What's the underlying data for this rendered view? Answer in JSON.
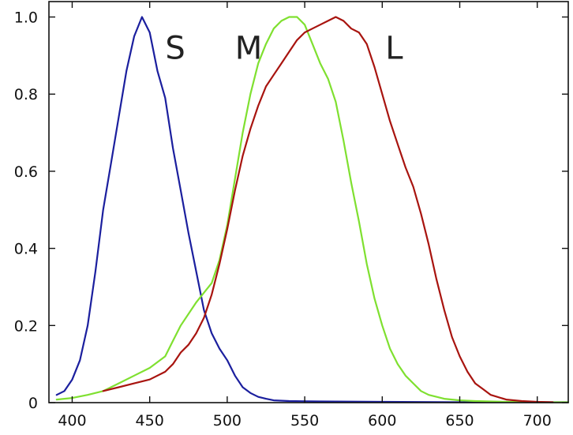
{
  "chart_data": {
    "type": "line",
    "title": "",
    "xlabel": "",
    "ylabel": "",
    "xlim": [
      385,
      720
    ],
    "ylim": [
      0,
      1.04
    ],
    "grid": false,
    "legend": "none",
    "x_ticks": [
      400,
      450,
      500,
      550,
      600,
      650,
      700
    ],
    "y_ticks": [
      0,
      0.2,
      0.4,
      0.6,
      0.8,
      1.0
    ],
    "x_tick_labels": [
      "400",
      "450",
      "500",
      "550",
      "600",
      "650",
      "700"
    ],
    "y_tick_labels": [
      "0",
      "0.2",
      "0.4",
      "0.6",
      "0.8",
      "1.0"
    ],
    "series": [
      {
        "name": "S",
        "label_position": [
          460,
          0.92
        ],
        "color": "#1b1f9e",
        "points": [
          [
            390,
            0.02
          ],
          [
            395,
            0.03
          ],
          [
            400,
            0.06
          ],
          [
            405,
            0.11
          ],
          [
            410,
            0.2
          ],
          [
            415,
            0.34
          ],
          [
            420,
            0.5
          ],
          [
            425,
            0.62
          ],
          [
            430,
            0.74
          ],
          [
            435,
            0.86
          ],
          [
            440,
            0.95
          ],
          [
            445,
            1.0
          ],
          [
            450,
            0.96
          ],
          [
            455,
            0.86
          ],
          [
            460,
            0.79
          ],
          [
            465,
            0.66
          ],
          [
            470,
            0.55
          ],
          [
            475,
            0.44
          ],
          [
            480,
            0.34
          ],
          [
            485,
            0.24
          ],
          [
            490,
            0.18
          ],
          [
            495,
            0.14
          ],
          [
            500,
            0.11
          ],
          [
            505,
            0.07
          ],
          [
            510,
            0.04
          ],
          [
            515,
            0.025
          ],
          [
            520,
            0.015
          ],
          [
            525,
            0.01
          ],
          [
            530,
            0.006
          ],
          [
            540,
            0.004
          ],
          [
            560,
            0.003
          ],
          [
            600,
            0.002
          ],
          [
            650,
            0.001
          ],
          [
            700,
            0.001
          ],
          [
            720,
            0.001
          ]
        ]
      },
      {
        "name": "M",
        "label_position": [
          505,
          0.92
        ],
        "color": "#7fe030",
        "points": [
          [
            390,
            0.008
          ],
          [
            400,
            0.012
          ],
          [
            410,
            0.02
          ],
          [
            420,
            0.03
          ],
          [
            430,
            0.05
          ],
          [
            440,
            0.07
          ],
          [
            450,
            0.09
          ],
          [
            460,
            0.12
          ],
          [
            465,
            0.16
          ],
          [
            470,
            0.2
          ],
          [
            480,
            0.26
          ],
          [
            490,
            0.31
          ],
          [
            495,
            0.37
          ],
          [
            500,
            0.46
          ],
          [
            505,
            0.58
          ],
          [
            510,
            0.7
          ],
          [
            515,
            0.8
          ],
          [
            520,
            0.88
          ],
          [
            525,
            0.93
          ],
          [
            530,
            0.97
          ],
          [
            535,
            0.99
          ],
          [
            540,
            1.0
          ],
          [
            545,
            1.0
          ],
          [
            550,
            0.98
          ],
          [
            555,
            0.93
          ],
          [
            560,
            0.88
          ],
          [
            565,
            0.84
          ],
          [
            570,
            0.78
          ],
          [
            575,
            0.68
          ],
          [
            580,
            0.57
          ],
          [
            585,
            0.47
          ],
          [
            590,
            0.36
          ],
          [
            595,
            0.27
          ],
          [
            600,
            0.2
          ],
          [
            605,
            0.14
          ],
          [
            610,
            0.1
          ],
          [
            615,
            0.07
          ],
          [
            620,
            0.05
          ],
          [
            625,
            0.03
          ],
          [
            630,
            0.02
          ],
          [
            640,
            0.01
          ],
          [
            650,
            0.006
          ],
          [
            660,
            0.004
          ],
          [
            680,
            0.002
          ],
          [
            700,
            0.001
          ],
          [
            720,
            0.001
          ]
        ]
      },
      {
        "name": "L",
        "label_position": [
          602,
          0.92
        ],
        "color": "#a8140f",
        "points": [
          [
            420,
            0.03
          ],
          [
            430,
            0.04
          ],
          [
            440,
            0.05
          ],
          [
            450,
            0.06
          ],
          [
            460,
            0.08
          ],
          [
            465,
            0.1
          ],
          [
            470,
            0.13
          ],
          [
            475,
            0.15
          ],
          [
            480,
            0.18
          ],
          [
            485,
            0.22
          ],
          [
            490,
            0.28
          ],
          [
            495,
            0.36
          ],
          [
            500,
            0.45
          ],
          [
            505,
            0.55
          ],
          [
            510,
            0.64
          ],
          [
            515,
            0.71
          ],
          [
            520,
            0.77
          ],
          [
            525,
            0.82
          ],
          [
            530,
            0.85
          ],
          [
            535,
            0.88
          ],
          [
            540,
            0.91
          ],
          [
            545,
            0.94
          ],
          [
            550,
            0.96
          ],
          [
            555,
            0.97
          ],
          [
            560,
            0.98
          ],
          [
            565,
            0.99
          ],
          [
            570,
            1.0
          ],
          [
            575,
            0.99
          ],
          [
            580,
            0.97
          ],
          [
            585,
            0.96
          ],
          [
            590,
            0.93
          ],
          [
            595,
            0.87
          ],
          [
            600,
            0.8
          ],
          [
            605,
            0.73
          ],
          [
            610,
            0.67
          ],
          [
            615,
            0.61
          ],
          [
            620,
            0.56
          ],
          [
            625,
            0.49
          ],
          [
            630,
            0.41
          ],
          [
            635,
            0.32
          ],
          [
            640,
            0.24
          ],
          [
            645,
            0.17
          ],
          [
            650,
            0.12
          ],
          [
            655,
            0.08
          ],
          [
            660,
            0.05
          ],
          [
            665,
            0.035
          ],
          [
            670,
            0.02
          ],
          [
            680,
            0.008
          ],
          [
            690,
            0.004
          ],
          [
            700,
            0.002
          ],
          [
            710,
            0.001
          ]
        ]
      }
    ]
  }
}
